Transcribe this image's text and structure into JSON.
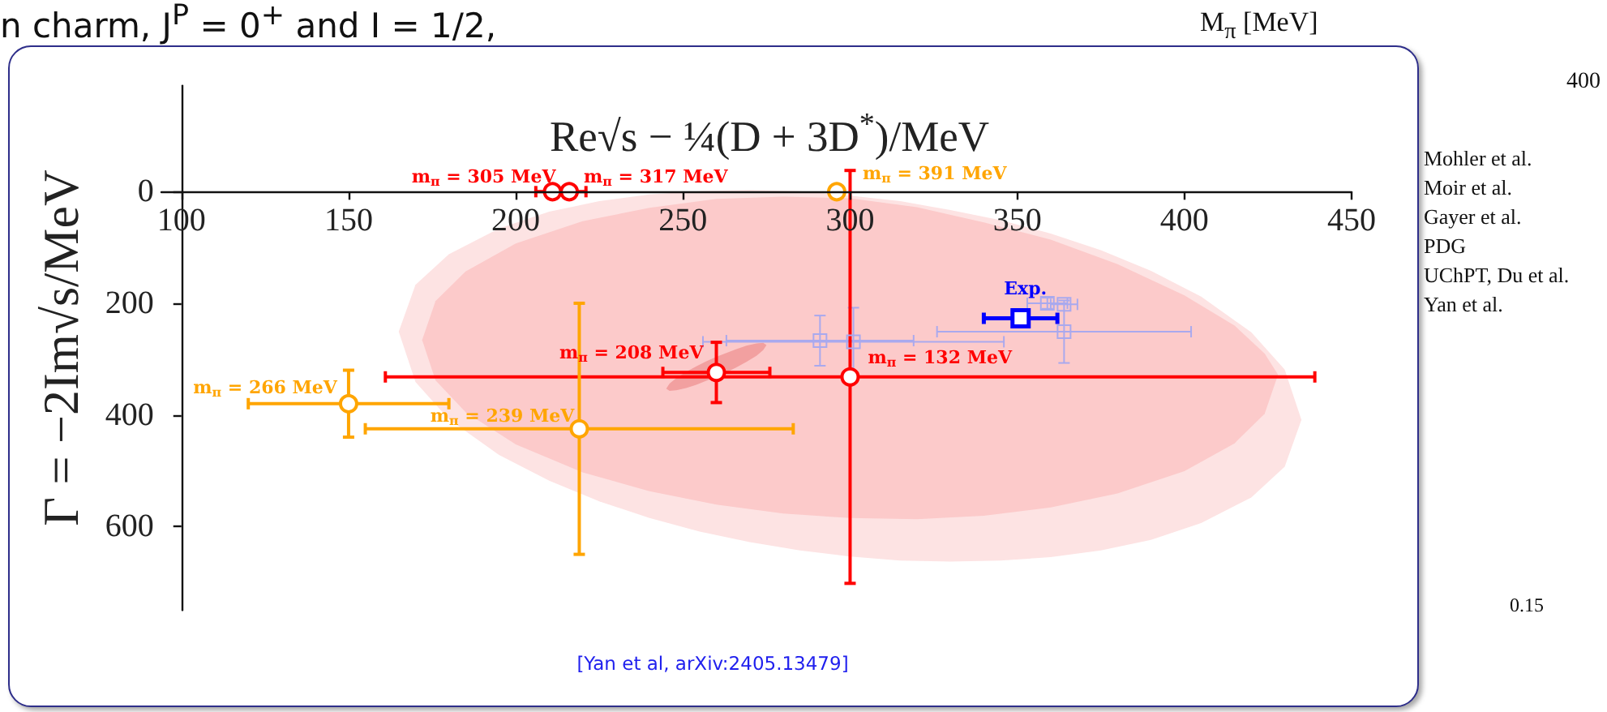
{
  "chart_data": [
    {
      "type": "scatter",
      "xlabel": "Re√s − ¼(D + 3D$^{*}$)/MeV",
      "ylabel": "Γ = −2Im√s/MeV",
      "xlim": [
        94,
        450
      ],
      "ylim": [
        750,
        -190
      ],
      "xticks": [
        100,
        150,
        200,
        250,
        300,
        350,
        400,
        450
      ],
      "yticks": [
        0,
        200,
        400,
        600
      ],
      "marker": "circle",
      "annotations": [
        "[Yan et al, arXiv:2405.13479]"
      ],
      "series": [
        {
          "type": "area",
          "marker": "none",
          "color": "#fde3e3",
          "x": [
            165,
            170,
            180,
            195,
            210,
            225,
            240,
            255,
            270,
            285,
            300,
            315,
            330,
            345,
            360,
            375,
            390,
            405,
            420,
            430,
            435,
            430,
            420,
            405,
            390,
            375,
            360,
            345,
            330,
            315,
            300,
            285,
            270,
            255,
            240,
            225,
            210,
            195,
            180,
            170
          ],
          "values": [
            251,
            167,
            112,
            66,
            36,
            17,
            5,
            -1,
            -3,
            -1,
            7,
            17,
            33,
            51,
            75,
            105,
            142,
            188,
            252,
            319,
            409,
            493,
            548,
            594,
            624,
            643,
            655,
            661,
            663,
            661,
            654,
            643,
            628,
            609,
            585,
            555,
            518,
            472,
            408,
            341
          ]
        },
        {
          "type": "area",
          "marker": "none",
          "color": "#fccaca",
          "x": [
            172,
            176,
            185,
            200,
            220,
            240,
            260,
            280,
            300,
            320,
            340,
            360,
            380,
            400,
            415,
            424,
            428,
            424,
            415,
            400,
            380,
            360,
            340,
            320,
            300,
            280,
            260,
            240,
            220,
            200,
            185,
            176
          ],
          "values": [
            266,
            196,
            143,
            93,
            53,
            29,
            13,
            9,
            12,
            28,
            55,
            86,
            130,
            186,
            240,
            290,
            328,
            398,
            451,
            501,
            541,
            566,
            581,
            587,
            585,
            577,
            561,
            537,
            503,
            453,
            395,
            338
          ]
        },
        {
          "type": "area",
          "marker": "none",
          "color": "#f2a0a0",
          "x": [
            245,
            246,
            248,
            251,
            254,
            257,
            260,
            263,
            266,
            269,
            272,
            274,
            275,
            274,
            272,
            269,
            266,
            263,
            260,
            257,
            254,
            251,
            248,
            246
          ],
          "values": [
            353,
            344,
            334,
            323,
            313,
            304,
            296,
            289,
            282,
            276,
            272,
            271,
            275,
            284,
            294,
            305,
            315,
            324,
            332,
            339,
            346,
            352,
            356,
            357
          ]
        },
        {
          "type": "scatter",
          "marker": "square",
          "color": "#a9a9ee",
          "x": [
            291,
            301,
            364,
            359,
            364
          ],
          "values": [
            267,
            269,
            251,
            200,
            202
          ],
          "xerrors": [
            28,
            45,
            38,
            6,
            4
          ],
          "errors": [
            45,
            61,
            56,
            10,
            null
          ]
        },
        {
          "name": "m$_{π}$ = 305 MeV",
          "color": "#ff0000",
          "x": [
            211
          ],
          "values": [
            0
          ],
          "xerrors": [
            5
          ]
        },
        {
          "name": "m$_{π}$ = 317 MeV",
          "color": "#ff0000",
          "x": [
            216
          ],
          "values": [
            0
          ],
          "xerrors": [
            5
          ]
        },
        {
          "name": "m$_{π}$ = 391 MeV",
          "color": "#ffa500",
          "x": [
            296
          ],
          "values": [
            0
          ]
        },
        {
          "name": "m$_{π}$ = 208 MeV",
          "color": "#ff0000",
          "x": [
            260
          ],
          "values": [
            324
          ],
          "xerrors": [
            16
          ],
          "errors": [
            54
          ]
        },
        {
          "name": "m$_{π}$ = 132 MeV",
          "color": "#ff0000",
          "x": [
            300
          ],
          "values": [
            332
          ],
          "xerrors": [
            139
          ],
          "errors": [
            370
          ]
        },
        {
          "name": "m$_{π}$ = 266 MeV",
          "color": "#ffa500",
          "x": [
            150
          ],
          "values": [
            380
          ],
          "xerrors": [
            30
          ],
          "errors": [
            60
          ]
        },
        {
          "name": "m$_{π}$ = 239 MeV",
          "color": "#ffa500",
          "x": [
            219
          ],
          "values": [
            425
          ],
          "xerrors": [
            64
          ],
          "errors": [
            225
          ]
        },
        {
          "name": "Exp.",
          "color": "#0000ff",
          "marker": "square",
          "x": [
            351
          ],
          "values": [
            227
          ],
          "xerrors": [
            11
          ]
        }
      ]
    },
    {
      "type": "other",
      "title": "n charm, J$^{P}$ = 0$^{+}$ and I = 1/2,",
      "annotations": [
        "M$_{π}$ [MeV]",
        "400",
        "Mohler et al.",
        "Moir et al.",
        "Gayer et al.",
        "PDG",
        "UChPT, Du et al.",
        "Yan et al.",
        "0.15"
      ]
    }
  ]
}
